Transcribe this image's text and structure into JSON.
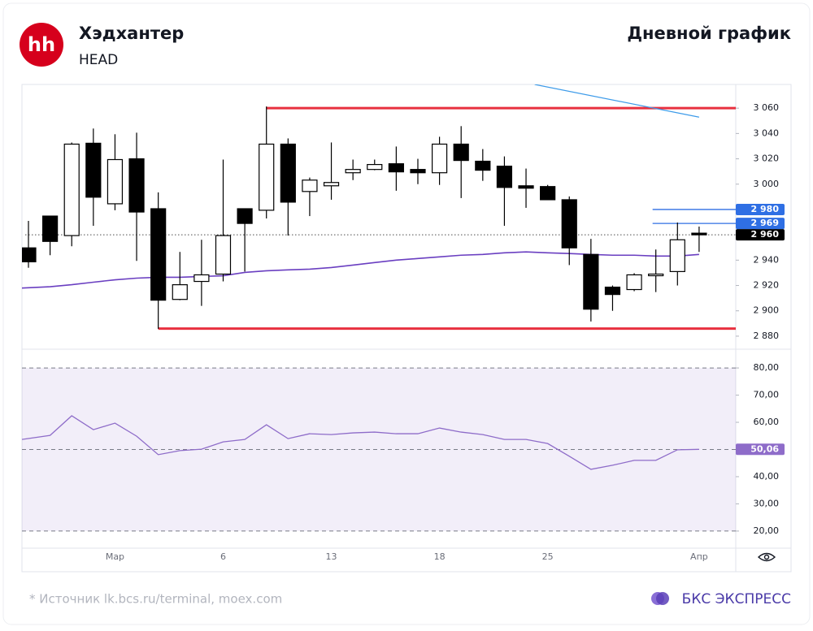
{
  "header": {
    "logo": "hh",
    "title": "Хэдхантер",
    "ticker": "HEAD",
    "chart_label": "Дневной график"
  },
  "footer": {
    "source": "* Источник lk.bcs.ru/terminal, moex.com",
    "brand": "БКС ЭКСПРЕСС"
  },
  "chart_data": [
    {
      "type": "candlestick",
      "categories": [
        null,
        null,
        null,
        null,
        "Мар",
        null,
        null,
        null,
        null,
        "6",
        null,
        null,
        null,
        null,
        "13",
        null,
        null,
        null,
        null,
        "18",
        null,
        null,
        null,
        null,
        "25",
        null,
        null,
        null,
        null,
        null,
        null,
        "Апр"
      ],
      "open": [
        2949.7,
        2974.8,
        2959.4,
        3032.3,
        2984.5,
        3020,
        2980.6,
        2909,
        2923.2,
        2929,
        2980.6,
        2979.4,
        3031.6,
        2994.2,
        2998.7,
        3009,
        3011.6,
        3016.1,
        3011.6,
        3009,
        3031.6,
        3018.1,
        3014.2,
        2998.7,
        2998.1,
        2987.7,
        2944.5,
        2918.7,
        2916.8,
        2927.7,
        2931,
        2961.3
      ],
      "high": [
        2971,
        2974.8,
        3032.9,
        3043.9,
        3039.4,
        3040.6,
        2993.5,
        2946.5,
        2956.1,
        3019.4,
        2980.6,
        3061.3,
        3036.1,
        3005.2,
        3032.9,
        3019.4,
        3019.4,
        3029.7,
        3020,
        3037.4,
        3045.8,
        3027.7,
        3021.9,
        3012.3,
        2999.4,
        2990.3,
        2956.8,
        2920,
        2929.7,
        2948.4,
        2969.7,
        2966.5
      ],
      "low": [
        2934,
        2943.9,
        2951,
        2967.1,
        2979.4,
        2939.4,
        2885.8,
        2908.4,
        2903.9,
        2923.2,
        2931,
        2972.9,
        2959.4,
        2974.8,
        2987.7,
        3003.2,
        3011,
        2994.8,
        3000,
        2999.4,
        2989,
        3002.6,
        2967.1,
        2981.3,
        2987.7,
        2936.1,
        2891.6,
        2900,
        2915.5,
        2914.8,
        2920,
        2946.5
      ],
      "close": [
        2938.7,
        2954.8,
        3031.6,
        2989.7,
        3019.4,
        2978,
        2908.4,
        2920.6,
        2928.4,
        2959.4,
        2969,
        3031.6,
        2985.8,
        3003.2,
        3001.3,
        3011.6,
        3015.5,
        3009.7,
        3009,
        3031.6,
        3018.7,
        3011,
        2997.4,
        2996.8,
        2987.7,
        2949.7,
        2901.3,
        2912.9,
        2928.4,
        2929,
        2956.1,
        2960
      ],
      "up_color": "#ffffff",
      "down_color": "#000000",
      "moving_average": {
        "color": "#6a3fc1",
        "values": [
          2918,
          2919,
          2920.6,
          2922.6,
          2924.5,
          2925.8,
          2926.5,
          2926.5,
          2927.1,
          2927.7,
          2930.3,
          2931.6,
          2932.3,
          2932.9,
          2934.2,
          2936.1,
          2938.1,
          2940,
          2941.3,
          2942.6,
          2943.9,
          2944.5,
          2945.8,
          2946.5,
          2945.8,
          2945.2,
          2944.5,
          2943.9,
          2943.9,
          2943.2,
          2943.2,
          2944.5
        ]
      },
      "ylim": [
        2869.7,
        3078.7
      ],
      "yticks": [
        {
          "value": 2880,
          "label": "2 880"
        },
        {
          "value": 2900,
          "label": "2 900"
        },
        {
          "value": 2920,
          "label": "2 920"
        },
        {
          "value": 2940,
          "label": "2 940"
        },
        {
          "value": 2960,
          "label": "2 960"
        },
        {
          "value": 2980,
          "label": "2 980"
        },
        {
          "value": 3000,
          "label": "3 000"
        },
        {
          "value": 3020,
          "label": "3 020"
        },
        {
          "value": 3040,
          "label": "3 040"
        },
        {
          "value": 3060,
          "label": "3 060"
        }
      ],
      "levels": [
        {
          "value": 3060,
          "color": "#e8303f",
          "from": 11
        },
        {
          "value": 2886,
          "color": "#e8303f",
          "from": 6
        }
      ],
      "trendline": {
        "color": "#3d9be9",
        "from": [
          23.4,
          3078.7
        ],
        "to": [
          31,
          3052.9
        ]
      },
      "price_labels": [
        {
          "value": 2980,
          "label": "2 980",
          "color": "#2f6fe4",
          "from": 29
        },
        {
          "value": 2969,
          "label": "2 969",
          "color": "#2f6fe4",
          "from": 29
        },
        {
          "value": 2960,
          "label": "2 960",
          "color": "#000000",
          "from": 0
        }
      ]
    },
    {
      "type": "line",
      "color": "#8e6cc9",
      "values": [
        53.7,
        55.2,
        62.4,
        57.3,
        59.7,
        54.9,
        48.1,
        49.6,
        50.1,
        52.8,
        53.7,
        59.1,
        54,
        55.8,
        55.5,
        56.1,
        56.4,
        55.8,
        55.8,
        57.9,
        56.4,
        55.5,
        53.7,
        53.7,
        52.2,
        47.5,
        42.7,
        44.2,
        46,
        46,
        49.9,
        50.06
      ],
      "last_label": "50,06",
      "ylim": [
        13.7,
        86.3
      ],
      "yticks": [
        {
          "value": 20,
          "label": "20,00"
        },
        {
          "value": 30,
          "label": "30,00"
        },
        {
          "value": 40,
          "label": "40,00"
        },
        {
          "value": 50,
          "label": "50,00"
        },
        {
          "value": 60,
          "label": "60,00"
        },
        {
          "value": 70,
          "label": "70,00"
        },
        {
          "value": 80,
          "label": "80,00"
        }
      ],
      "band": [
        20,
        80
      ],
      "dashed": [
        20,
        50,
        80
      ]
    }
  ]
}
